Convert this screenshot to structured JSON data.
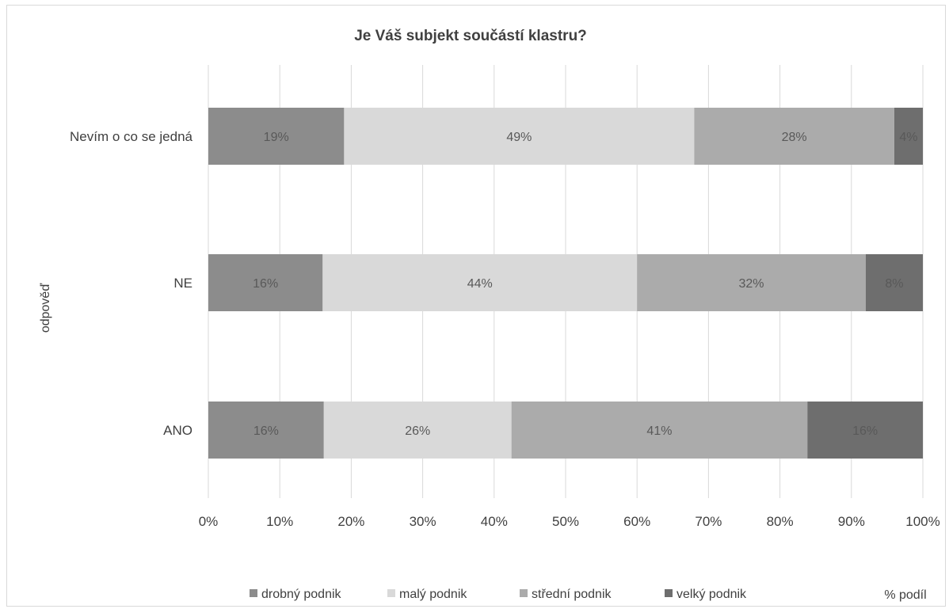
{
  "chart_data": {
    "type": "bar",
    "orientation": "horizontal",
    "stacked": "percent",
    "title": "Je Váš subjekt součástí klastru?",
    "xlabel": "% podíl",
    "ylabel": "odpověď",
    "categories": [
      "Nevím o co se jedná",
      "NE",
      "ANO"
    ],
    "xlim": [
      0,
      100
    ],
    "xticks": [
      "0%",
      "10%",
      "20%",
      "30%",
      "40%",
      "50%",
      "60%",
      "70%",
      "80%",
      "90%",
      "100%"
    ],
    "grid": "vertical",
    "legend_position": "bottom",
    "series": [
      {
        "name": "drobný podnik",
        "values": [
          19,
          16,
          16
        ],
        "labels": [
          "19%",
          "16%",
          "16%"
        ],
        "color": "#8c8c8c"
      },
      {
        "name": "malý podnik",
        "values": [
          49,
          44,
          26
        ],
        "labels": [
          "49%",
          "44%",
          "26%"
        ],
        "color": "#d9d9d9"
      },
      {
        "name": "střední podnik",
        "values": [
          28,
          32,
          41
        ],
        "labels": [
          "28%",
          "32%",
          "41%"
        ],
        "color": "#ababab"
      },
      {
        "name": "velký podnik",
        "values": [
          4,
          8,
          16
        ],
        "labels": [
          "4%",
          "8%",
          "16%"
        ],
        "color": "#6e6e6e"
      }
    ]
  }
}
